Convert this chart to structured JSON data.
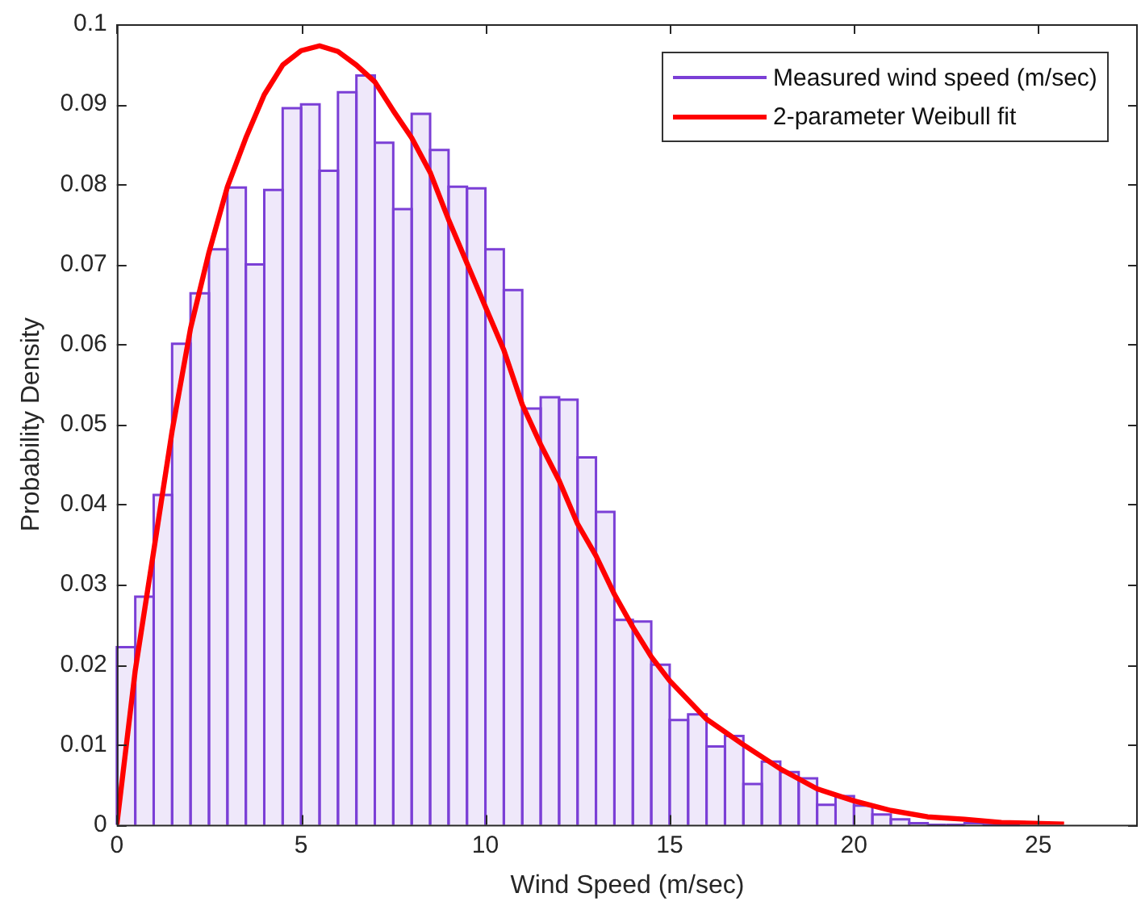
{
  "chart_data": {
    "type": "histogram",
    "xlabel": "Wind Speed (m/sec)",
    "ylabel": "Probability Density",
    "xlim": [
      0,
      27.7
    ],
    "xticks": [
      0,
      5,
      10,
      15,
      20,
      25
    ],
    "ylim": [
      0,
      0.1
    ],
    "yticks": [
      0,
      0.01,
      0.02,
      0.03,
      0.04,
      0.05,
      0.06,
      0.07,
      0.08,
      0.09,
      0.1
    ],
    "grid": false,
    "legend": "top right",
    "bins": [
      0,
      0.5,
      1,
      1.5,
      2,
      2.5,
      3,
      3.5,
      4,
      4.5,
      5,
      5.5,
      6,
      6.5,
      7,
      7.5,
      8,
      8.5,
      9,
      9.5,
      10,
      10.5,
      11,
      11.5,
      12,
      12.5,
      13,
      13.5,
      14,
      14.5,
      15,
      15.5,
      16,
      16.5,
      17,
      17.5,
      18,
      18.5,
      19,
      19.5,
      20,
      20.5,
      21,
      21.5,
      22,
      22.5,
      23,
      23.5,
      24,
      24.5
    ],
    "series": [
      {
        "name": "Measured wind speed (m/sec)",
        "color": "#7b3fd6",
        "values": [
          0.0222,
          0.0285,
          0.0412,
          0.0601,
          0.0664,
          0.0719,
          0.0796,
          0.07,
          0.0793,
          0.0895,
          0.09,
          0.0817,
          0.0915,
          0.0936,
          0.0852,
          0.0769,
          0.0888,
          0.0843,
          0.0797,
          0.0795,
          0.0719,
          0.0668,
          0.052,
          0.0534,
          0.0531,
          0.0459,
          0.0391,
          0.0256,
          0.0254,
          0.02,
          0.0131,
          0.0138,
          0.0098,
          0.0111,
          0.0051,
          0.0079,
          0.0066,
          0.0058,
          0.0025,
          0.0036,
          0.0024,
          0.0013,
          0.0007,
          0.0002,
          null,
          null,
          0.0002,
          null,
          null
        ]
      },
      {
        "name": "2-parameter Weibull fit",
        "color": "#ff0000",
        "type": "line",
        "x": [
          0,
          0.5,
          1,
          1.5,
          2,
          2.5,
          3,
          3.5,
          4,
          4.5,
          5,
          5.5,
          6,
          6.5,
          7,
          7.5,
          8,
          8.5,
          9,
          10,
          10.5,
          11,
          11.5,
          12,
          12.5,
          13,
          13.5,
          14,
          14.5,
          15,
          16,
          17,
          18,
          19,
          20,
          21,
          22,
          23,
          24,
          25.7
        ],
        "values": [
          0,
          0.0193,
          0.0342,
          0.0492,
          0.062,
          0.0715,
          0.0797,
          0.0858,
          0.0912,
          0.0949,
          0.0967,
          0.0973,
          0.0966,
          0.0949,
          0.0928,
          0.0892,
          0.0858,
          0.0815,
          0.0756,
          0.0647,
          0.0593,
          0.0525,
          0.0475,
          0.043,
          0.0376,
          0.0336,
          0.0288,
          0.0247,
          0.021,
          0.018,
          0.0132,
          0.01,
          0.007,
          0.0045,
          0.003,
          0.0018,
          0.001,
          0.0007,
          0.0003,
          0.0001
        ]
      }
    ]
  }
}
